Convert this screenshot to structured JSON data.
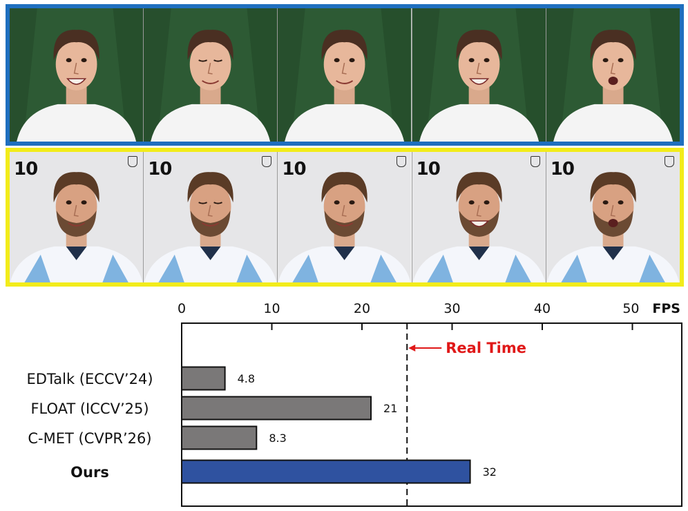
{
  "colors": {
    "top_row_border": "#1f6fbf",
    "bottom_row_border": "#f2ec1a",
    "baseline_bar": "#7a7878",
    "ours_bar": "#2f52a0",
    "real_time": "#e01818"
  },
  "top_row": {
    "frames": [
      {
        "expression": "open-smile"
      },
      {
        "expression": "eyes-closed"
      },
      {
        "expression": "smile"
      },
      {
        "expression": "open-smile"
      },
      {
        "expression": "open-mouth"
      }
    ]
  },
  "bottom_row": {
    "jersey_number": "10",
    "frames": [
      {
        "expression": "smile"
      },
      {
        "expression": "eyes-closed"
      },
      {
        "expression": "smile"
      },
      {
        "expression": "open-smile"
      },
      {
        "expression": "open-mouth"
      }
    ]
  },
  "chart_data": {
    "type": "bar",
    "orientation": "horizontal",
    "unit_label": "FPS",
    "xlim": [
      0,
      53
    ],
    "x_ticks": [
      0,
      10,
      20,
      30,
      40,
      50
    ],
    "categories": [
      "EDTalk (ECCV’24)",
      "FLOAT (ICCV’25)",
      "C-MET (CVPR’26)",
      "Ours"
    ],
    "values": [
      4.8,
      21,
      8.3,
      32
    ],
    "value_labels": [
      "4.8",
      "21",
      "8.3",
      "32"
    ],
    "highlight": "Ours",
    "reference_line": {
      "value": 25,
      "label": "Real Time",
      "style": "dashed"
    },
    "grid": false
  }
}
